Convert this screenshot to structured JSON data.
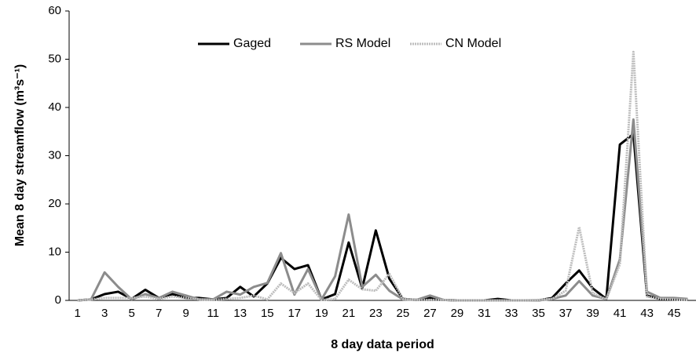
{
  "chart_data": {
    "type": "line",
    "x_label": "8 day data period",
    "y_label": "Mean 8 day streamflow (m³s⁻¹)",
    "categories": [
      1,
      null,
      3,
      null,
      5,
      null,
      7,
      null,
      9,
      null,
      11,
      null,
      13,
      null,
      15,
      null,
      17,
      null,
      19,
      null,
      21,
      null,
      23,
      null,
      25,
      null,
      27,
      null,
      29,
      null,
      31,
      null,
      33,
      null,
      35,
      null,
      37,
      null,
      39,
      null,
      41,
      null,
      43,
      null,
      45,
      null
    ],
    "ylim": [
      0,
      60
    ],
    "yticks": [
      0,
      10,
      20,
      30,
      40,
      50,
      60
    ],
    "legend": "top-center",
    "series": [
      {
        "name": "Gaged",
        "color": "#000000",
        "style": "solid",
        "values": [
          0,
          0.2,
          1.3,
          1.8,
          0.3,
          2.2,
          0.5,
          1.3,
          0.5,
          0.5,
          0.2,
          0.5,
          2.8,
          0.8,
          3.5,
          8.8,
          6.5,
          7.3,
          0.2,
          1.3,
          12,
          2.5,
          14.5,
          4.5,
          0.3,
          0.1,
          0.5,
          0.1,
          0,
          0,
          0,
          0.3,
          0,
          0,
          0,
          0.5,
          3.5,
          6.2,
          2.5,
          0.3,
          32.3,
          34.5,
          1,
          0.3,
          0.3,
          0.2
        ]
      },
      {
        "name": "RS Model",
        "color": "#8c8c8c",
        "style": "solid",
        "values": [
          0,
          0.2,
          5.8,
          2.8,
          0.2,
          1.3,
          0.5,
          1.8,
          1,
          0.2,
          0.2,
          1.8,
          1.2,
          2.8,
          3.6,
          9.8,
          1.2,
          6.5,
          0.2,
          5,
          17.8,
          2.8,
          5.3,
          2,
          0.2,
          0.1,
          1,
          0.1,
          0,
          0,
          0,
          0,
          0,
          0,
          0,
          0.3,
          1,
          4,
          1,
          0.3,
          8.5,
          37.5,
          1.8,
          0.5,
          0.5,
          0.3
        ]
      },
      {
        "name": "CN Model",
        "color": "#bdbdbd",
        "style": "dotted",
        "values": [
          0,
          0.2,
          0.5,
          0.5,
          0.5,
          0.8,
          0.3,
          0.8,
          0.5,
          0.2,
          0.1,
          0.3,
          0.5,
          1,
          0.2,
          3.5,
          1.5,
          3.5,
          0.1,
          0.3,
          4.3,
          2.3,
          2,
          5.5,
          0.3,
          0.1,
          0.1,
          0.1,
          0,
          0,
          0,
          0,
          0,
          0,
          0.1,
          0.3,
          2,
          15.2,
          1.5,
          0.2,
          7.5,
          51.5,
          0.8,
          0.3,
          0.2,
          0.1
        ]
      }
    ]
  }
}
